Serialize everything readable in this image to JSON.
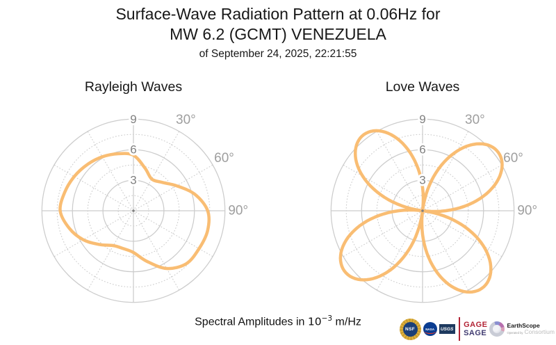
{
  "header": {
    "title_line1": "Surface-Wave Radiation Pattern at 0.06Hz for",
    "title_line2": "MW 6.2 (GCMT) VENEZUELA",
    "date_line": "of September 24, 2025, 22:21:55"
  },
  "footer": {
    "prefix": "Spectral Amplitudes in ",
    "base": "10",
    "exponent": "−3",
    "suffix": " m/Hz"
  },
  "logos": {
    "nsf": "NSF",
    "nasa": "NASA",
    "usgs": "USGS",
    "gage": "GAGE",
    "sage": "SAGE",
    "earthscope": "EarthScope",
    "operated_by": "Operated by",
    "consortium": "Consortium"
  },
  "style": {
    "curve_color": "#F9BD73",
    "curve_width": 4.5,
    "grid_color": "#cccccc",
    "r_label_color": "#808080",
    "angle_label_color": "#9e9e9e",
    "center_dot_color": "#808080"
  },
  "chart_data": [
    {
      "type": "line",
      "polar": true,
      "title": "Rayleigh Waves",
      "rlim": [
        0,
        9
      ],
      "r_ticks": [
        3,
        6,
        9
      ],
      "r_minor_ticks": [
        1.5,
        4.5,
        7.5
      ],
      "angle_ticks_deg": [
        30,
        60,
        90
      ],
      "angle_tick_labels": [
        "30°",
        "60°",
        "90°"
      ],
      "spoke_step_deg": 30,
      "grid": true,
      "legend": "none",
      "series": [
        {
          "name": "rayleigh_spectral_amplitude",
          "units": "1e-3 m/Hz",
          "points_az_r": [
            [
              0,
              5.45
            ],
            [
              15,
              4.35
            ],
            [
              30,
              3.6
            ],
            [
              45,
              3.95
            ],
            [
              60,
              4.9
            ],
            [
              75,
              6.25
            ],
            [
              90,
              7.3
            ],
            [
              105,
              7.55
            ],
            [
              120,
              7.45
            ],
            [
              135,
              7.35
            ],
            [
              150,
              6.55
            ],
            [
              165,
              5.15
            ],
            [
              180,
              4.1
            ],
            [
              195,
              3.85
            ],
            [
              210,
              3.95
            ],
            [
              225,
              4.7
            ],
            [
              240,
              5.7
            ],
            [
              255,
              6.55
            ],
            [
              270,
              7.2
            ],
            [
              285,
              7.0
            ],
            [
              300,
              6.72
            ],
            [
              315,
              6.42
            ],
            [
              330,
              6.12
            ],
            [
              345,
              5.8
            ]
          ]
        }
      ]
    },
    {
      "type": "line",
      "polar": true,
      "title": "Love Waves",
      "rlim": [
        0,
        9
      ],
      "r_ticks": [
        3,
        6,
        9
      ],
      "r_minor_ticks": [
        1.5,
        4.5,
        7.5
      ],
      "angle_ticks_deg": [
        30,
        60,
        90
      ],
      "angle_tick_labels": [
        "30°",
        "60°",
        "90°"
      ],
      "spoke_step_deg": 30,
      "grid": true,
      "legend": "none",
      "series": [
        {
          "name": "love_spectral_amplitude",
          "units": "1e-3 m/Hz",
          "model": "four_lobe_rose",
          "node_offset_deg": 7,
          "node_azimuths_deg": [
            7,
            97,
            187,
            277
          ],
          "lobes": [
            {
              "axis_deg": 52,
              "peak_r": 9.4
            },
            {
              "axis_deg": 142,
              "peak_r": 9.6
            },
            {
              "axis_deg": 232,
              "peak_r": 9.7
            },
            {
              "axis_deg": 322,
              "peak_r": 9.45
            }
          ],
          "points_az_r": [
            [
              0,
              2.29
            ],
            [
              10,
              0.98
            ],
            [
              20,
              4.12
            ],
            [
              30,
              6.76
            ],
            [
              40,
              8.59
            ],
            [
              50,
              9.38
            ],
            [
              60,
              9.03
            ],
            [
              70,
              7.6
            ],
            [
              80,
              5.26
            ],
            [
              90,
              2.27
            ],
            [
              97,
              0.0
            ],
            [
              100,
              1.01
            ],
            [
              110,
              4.21
            ],
            [
              120,
              6.9
            ],
            [
              130,
              8.77
            ],
            [
              140,
              9.58
            ],
            [
              150,
              9.23
            ],
            [
              160,
              7.77
            ],
            [
              170,
              5.37
            ],
            [
              180,
              2.32
            ],
            [
              187,
              0.0
            ],
            [
              190,
              1.02
            ],
            [
              200,
              4.25
            ],
            [
              210,
              6.97
            ],
            [
              220,
              8.87
            ],
            [
              230,
              9.68
            ],
            [
              240,
              9.32
            ],
            [
              250,
              7.85
            ],
            [
              260,
              5.42
            ],
            [
              270,
              2.35
            ],
            [
              277,
              0.0
            ],
            [
              280,
              0.99
            ],
            [
              290,
              4.14
            ],
            [
              300,
              6.79
            ],
            [
              310,
              8.64
            ],
            [
              320,
              9.43
            ],
            [
              330,
              9.08
            ],
            [
              340,
              7.64
            ],
            [
              350,
              5.28
            ]
          ]
        }
      ]
    }
  ]
}
